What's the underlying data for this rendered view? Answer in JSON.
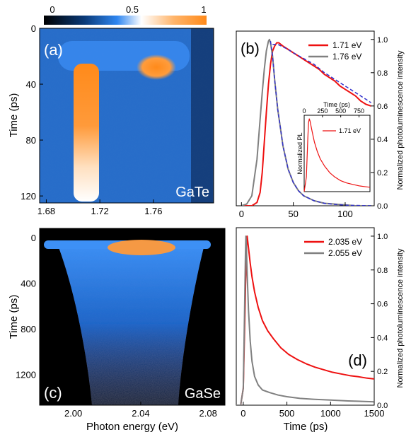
{
  "colorbar": {
    "ticks": [
      "0",
      "0.5",
      "1"
    ]
  },
  "chart_data": [
    {
      "id": "a",
      "type": "heatmap",
      "panel_label": "(a)",
      "material": "GaTe",
      "ylabel": "Time (ps)",
      "xticks": [
        "1.68",
        "1.72",
        "1.76"
      ],
      "yticks": [
        "0",
        "40",
        "80",
        "120"
      ],
      "xlim": [
        1.675,
        1.805
      ],
      "ylim": [
        0,
        125
      ],
      "color_range": [
        0,
        1
      ]
    },
    {
      "id": "b",
      "type": "line",
      "panel_label": "(b)",
      "ylabel": "Normalized photoluminescence intensity",
      "xticks": [
        "0",
        "50",
        "100"
      ],
      "yticks": [
        "0.0",
        "0.2",
        "0.4",
        "0.6",
        "0.8",
        "1.0"
      ],
      "xlim": [
        -5,
        128
      ],
      "ylim": [
        0,
        1.05
      ],
      "series": [
        {
          "name": "1.71 eV",
          "color": "#ee1111",
          "x": [
            0,
            10,
            15,
            18,
            20,
            22,
            24,
            26,
            28,
            30,
            32,
            34,
            36,
            40,
            45,
            50,
            55,
            60,
            65,
            70,
            75,
            80,
            85,
            90,
            95,
            100,
            105,
            110,
            115,
            120,
            125
          ],
          "y": [
            0.0,
            0.0,
            0.02,
            0.08,
            0.2,
            0.38,
            0.56,
            0.73,
            0.85,
            0.93,
            0.96,
            0.98,
            0.98,
            0.96,
            0.94,
            0.92,
            0.9,
            0.88,
            0.86,
            0.84,
            0.82,
            0.79,
            0.77,
            0.75,
            0.72,
            0.7,
            0.68,
            0.66,
            0.63,
            0.61,
            0.6
          ]
        },
        {
          "name": "1.76 eV",
          "color": "#808080",
          "x": [
            0,
            5,
            10,
            15,
            18,
            20,
            22,
            24,
            26,
            27,
            28,
            30,
            32,
            35,
            38,
            40,
            45,
            50,
            55,
            60,
            70,
            80,
            90,
            100,
            110,
            120,
            125
          ],
          "y": [
            0.0,
            0.01,
            0.06,
            0.28,
            0.52,
            0.68,
            0.82,
            0.93,
            0.99,
            1.0,
            0.98,
            0.9,
            0.76,
            0.58,
            0.45,
            0.36,
            0.22,
            0.14,
            0.09,
            0.06,
            0.03,
            0.015,
            0.01,
            0.005,
            0.0,
            0.0,
            0.0
          ]
        },
        {
          "name": "",
          "color": "#3333cc",
          "dashed": true,
          "x": [
            30,
            35,
            40,
            45,
            50,
            60,
            70,
            80,
            90,
            100,
            110,
            120,
            125
          ],
          "y": [
            0.97,
            0.97,
            0.955,
            0.94,
            0.92,
            0.885,
            0.85,
            0.8,
            0.76,
            0.72,
            0.68,
            0.64,
            0.62
          ]
        },
        {
          "name": "",
          "color": "#3333cc",
          "dashed": true,
          "x": [
            28,
            30,
            32,
            35,
            38,
            40,
            45,
            50,
            55,
            60,
            70,
            80,
            90,
            100,
            110,
            125
          ],
          "y": [
            0.99,
            0.9,
            0.76,
            0.58,
            0.45,
            0.36,
            0.22,
            0.14,
            0.09,
            0.06,
            0.03,
            0.015,
            0.008,
            0.004,
            0.002,
            0.0
          ]
        }
      ],
      "inset": {
        "type": "line",
        "xlabel": "Time (ps)",
        "ylabel": "Normalized PL",
        "xticks": [
          "0",
          "250",
          "500",
          "750"
        ],
        "xlim": [
          0,
          900
        ],
        "ylim": [
          0,
          1.05
        ],
        "series": [
          {
            "name": "1.71 eV",
            "color": "#ee1111",
            "x": [
              0,
              30,
              50,
              60,
              70,
              80,
              90,
              110,
              140,
              180,
              220,
              280,
              350,
              420,
              500,
              580,
              660,
              750,
              820,
              900
            ],
            "y": [
              0.0,
              0.2,
              0.75,
              0.95,
              1.0,
              0.97,
              0.92,
              0.82,
              0.68,
              0.55,
              0.45,
              0.35,
              0.26,
              0.2,
              0.15,
              0.12,
              0.1,
              0.08,
              0.07,
              0.06
            ]
          }
        ]
      }
    },
    {
      "id": "c",
      "type": "heatmap",
      "panel_label": "(c)",
      "material": "GaSe",
      "xlabel": "Photon energy (eV)",
      "ylabel": "Time (ps)",
      "xticks": [
        "2.00",
        "2.04",
        "2.08"
      ],
      "yticks": [
        "0",
        "400",
        "800",
        "1200"
      ],
      "xlim": [
        1.98,
        2.09
      ],
      "ylim": [
        -80,
        1470
      ],
      "color_range": [
        0,
        1
      ]
    },
    {
      "id": "d",
      "type": "line",
      "panel_label": "(d)",
      "xlabel": "Time (ps)",
      "ylabel": "Normalized photoluminescence intensity",
      "xticks": [
        "0",
        "500",
        "1000",
        "1500"
      ],
      "yticks": [
        "0.0",
        "0.2",
        "0.4",
        "0.6",
        "0.8",
        "1.0"
      ],
      "xlim": [
        -80,
        1500
      ],
      "ylim": [
        0,
        1.05
      ],
      "series": [
        {
          "name": "2.035 eV",
          "color": "#ee1111",
          "x": [
            -80,
            -30,
            0,
            20,
            35,
            45,
            60,
            80,
            100,
            130,
            170,
            220,
            280,
            350,
            430,
            520,
            620,
            720,
            820,
            920,
            1020,
            1120,
            1220,
            1320,
            1420,
            1500
          ],
          "y": [
            0.0,
            0.0,
            0.1,
            0.55,
            0.92,
            1.0,
            0.93,
            0.84,
            0.76,
            0.67,
            0.58,
            0.5,
            0.44,
            0.39,
            0.34,
            0.3,
            0.27,
            0.245,
            0.225,
            0.21,
            0.195,
            0.185,
            0.175,
            0.168,
            0.16,
            0.155
          ]
        },
        {
          "name": "2.055 eV",
          "color": "#808080",
          "x": [
            -80,
            -30,
            0,
            15,
            25,
            30,
            35,
            45,
            60,
            80,
            100,
            130,
            170,
            220,
            300,
            400,
            500,
            650,
            800,
            1000,
            1200,
            1500
          ],
          "y": [
            0.0,
            0.0,
            0.1,
            0.55,
            0.9,
            1.0,
            0.95,
            0.78,
            0.56,
            0.38,
            0.26,
            0.17,
            0.12,
            0.09,
            0.075,
            0.06,
            0.05,
            0.04,
            0.035,
            0.03,
            0.025,
            0.02
          ]
        }
      ]
    }
  ]
}
